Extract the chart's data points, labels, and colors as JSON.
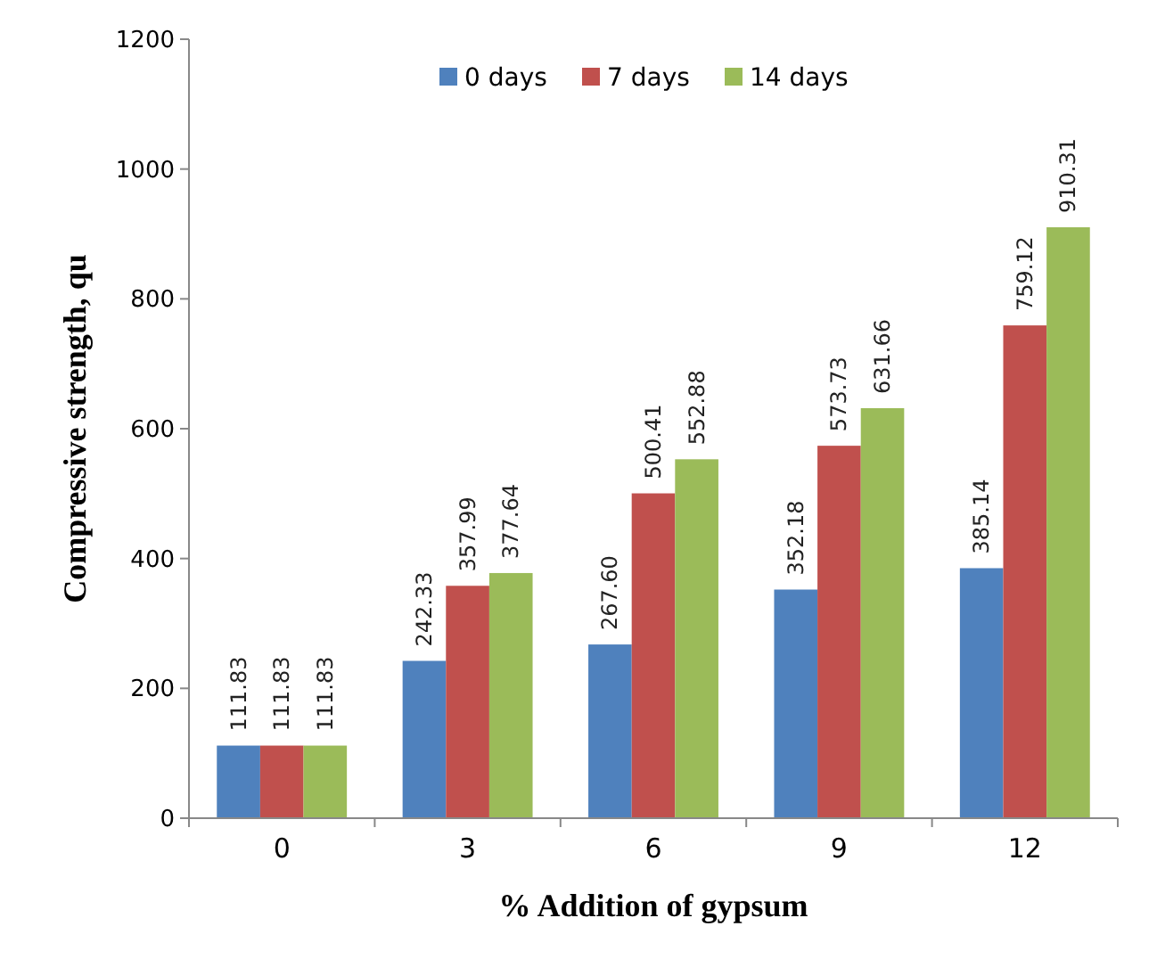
{
  "chart_data": {
    "type": "bar",
    "xlabel": "% Addition of gypsum",
    "ylabel": "Compressive strength, qu",
    "categories": [
      "0",
      "3",
      "6",
      "9",
      "12"
    ],
    "series": [
      {
        "name": "0 days",
        "color": "#4f81bd",
        "values": [
          111.83,
          242.33,
          267.6,
          352.18,
          385.14
        ],
        "value_labels": [
          "111.83",
          "242.33",
          "267.60",
          "352.18",
          "385.14"
        ]
      },
      {
        "name": "7 days",
        "color": "#c0504d",
        "values": [
          111.83,
          357.99,
          500.41,
          573.73,
          759.12
        ],
        "value_labels": [
          "111.83",
          "357.99",
          "500.41",
          "573.73",
          "759.12"
        ]
      },
      {
        "name": "14 days",
        "color": "#9bbb59",
        "values": [
          111.83,
          377.64,
          552.88,
          631.66,
          910.31
        ],
        "value_labels": [
          "111.83",
          "377.64",
          "552.88",
          "631.66",
          "910.31"
        ]
      }
    ],
    "ylim": [
      0,
      1200
    ],
    "yticks": [
      0,
      200,
      400,
      600,
      800,
      1000,
      1200
    ],
    "legend": "top",
    "grid": false
  }
}
